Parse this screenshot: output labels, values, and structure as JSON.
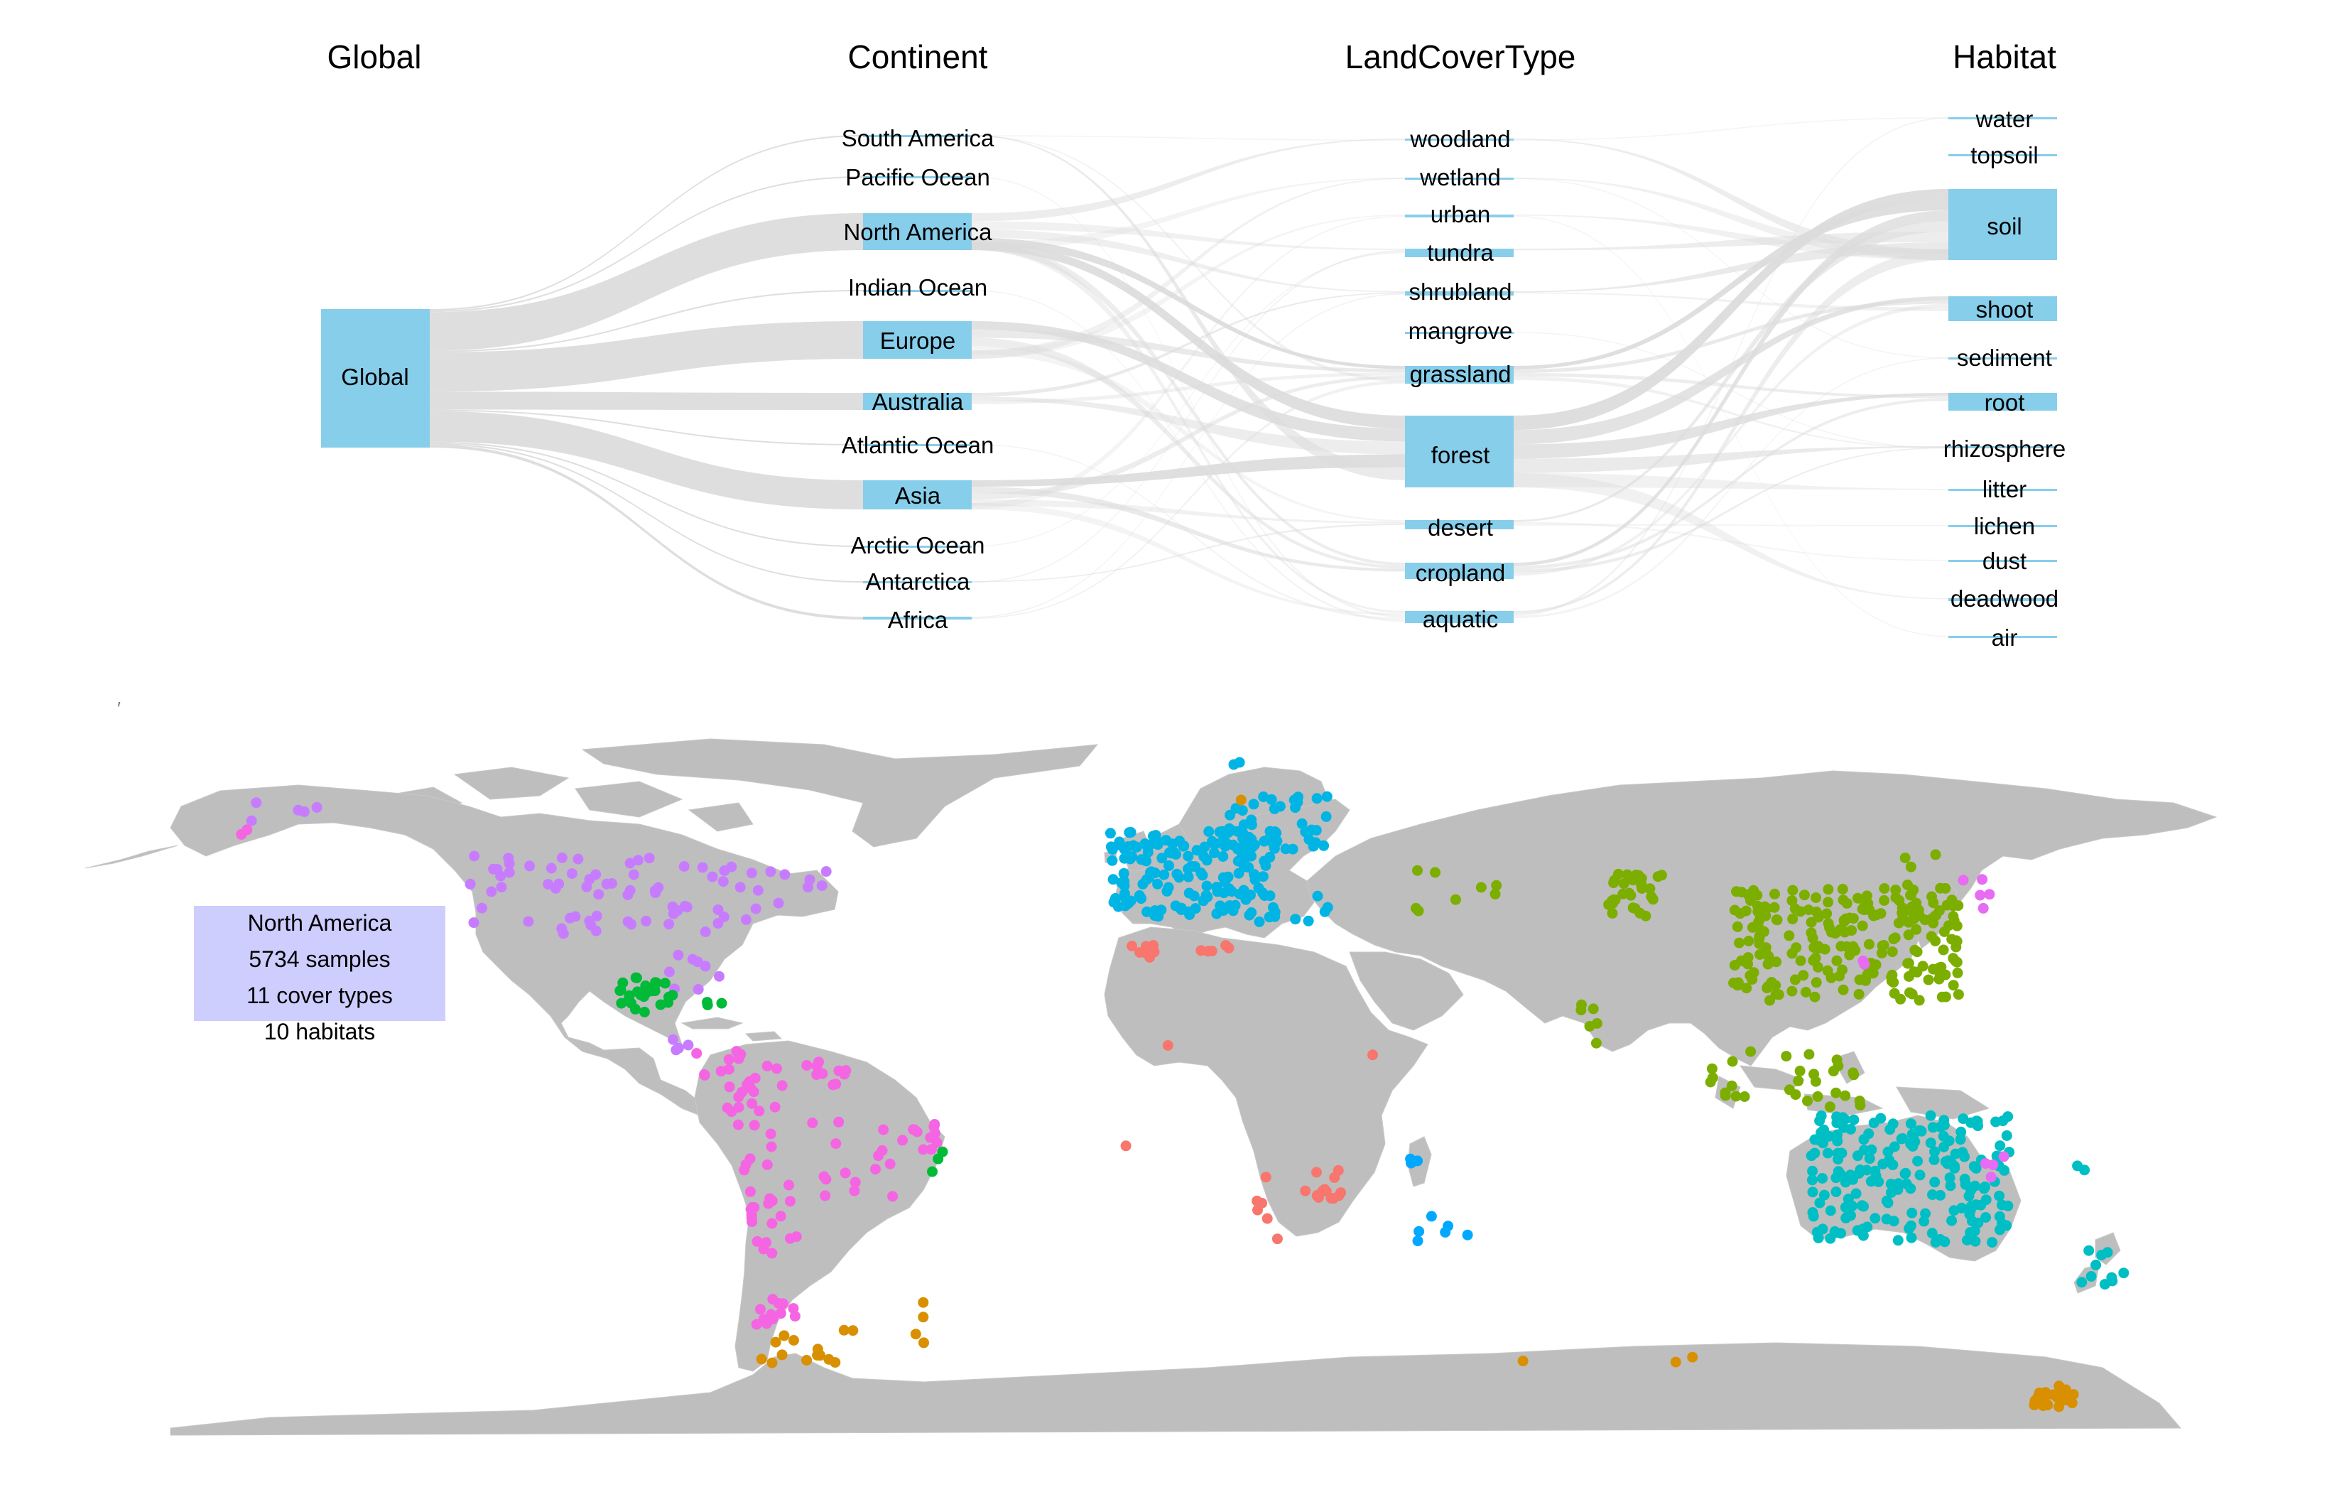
{
  "sankey": {
    "columns": [
      "Global",
      "Continent",
      "LandCoverType",
      "Habitat"
    ],
    "colors": {
      "node": "#87ceeb",
      "link": "#dcdcdc"
    },
    "global": "Global",
    "continents": [
      "South America",
      "Pacific Ocean",
      "North America",
      "Indian Ocean",
      "Europe",
      "Australia",
      "Atlantic Ocean",
      "Asia",
      "Arctic Ocean",
      "Antarctica",
      "Africa"
    ],
    "landcover": [
      "woodland",
      "wetland",
      "urban",
      "tundra",
      "shrubland",
      "mangrove",
      "grassland",
      "forest",
      "desert",
      "cropland",
      "aquatic"
    ],
    "habitats": [
      "water",
      "topsoil",
      "soil",
      "shoot",
      "sediment",
      "root",
      "rhizosphere",
      "litter",
      "lichen",
      "dust",
      "deadwood",
      "air"
    ]
  },
  "map": {
    "land_color": "#bebebe",
    "info_box": {
      "region": "North America",
      "samples": "5734 samples",
      "cover_types": "11 cover types",
      "habitats": "10 habitats",
      "color": "#cdcdfe"
    },
    "point_colors": {
      "North America": "#c77cff",
      "Central America": "#00ba38",
      "South America": "#f564e3",
      "Europe": "#00b4e4",
      "Asia": "#7cae00",
      "Africa": "#f8766d",
      "Australia": "#00bfc4",
      "Antarctica": "#d89000",
      "Indian Ocean": "#00a9ff",
      "Pacific": "#e76bf3"
    }
  }
}
